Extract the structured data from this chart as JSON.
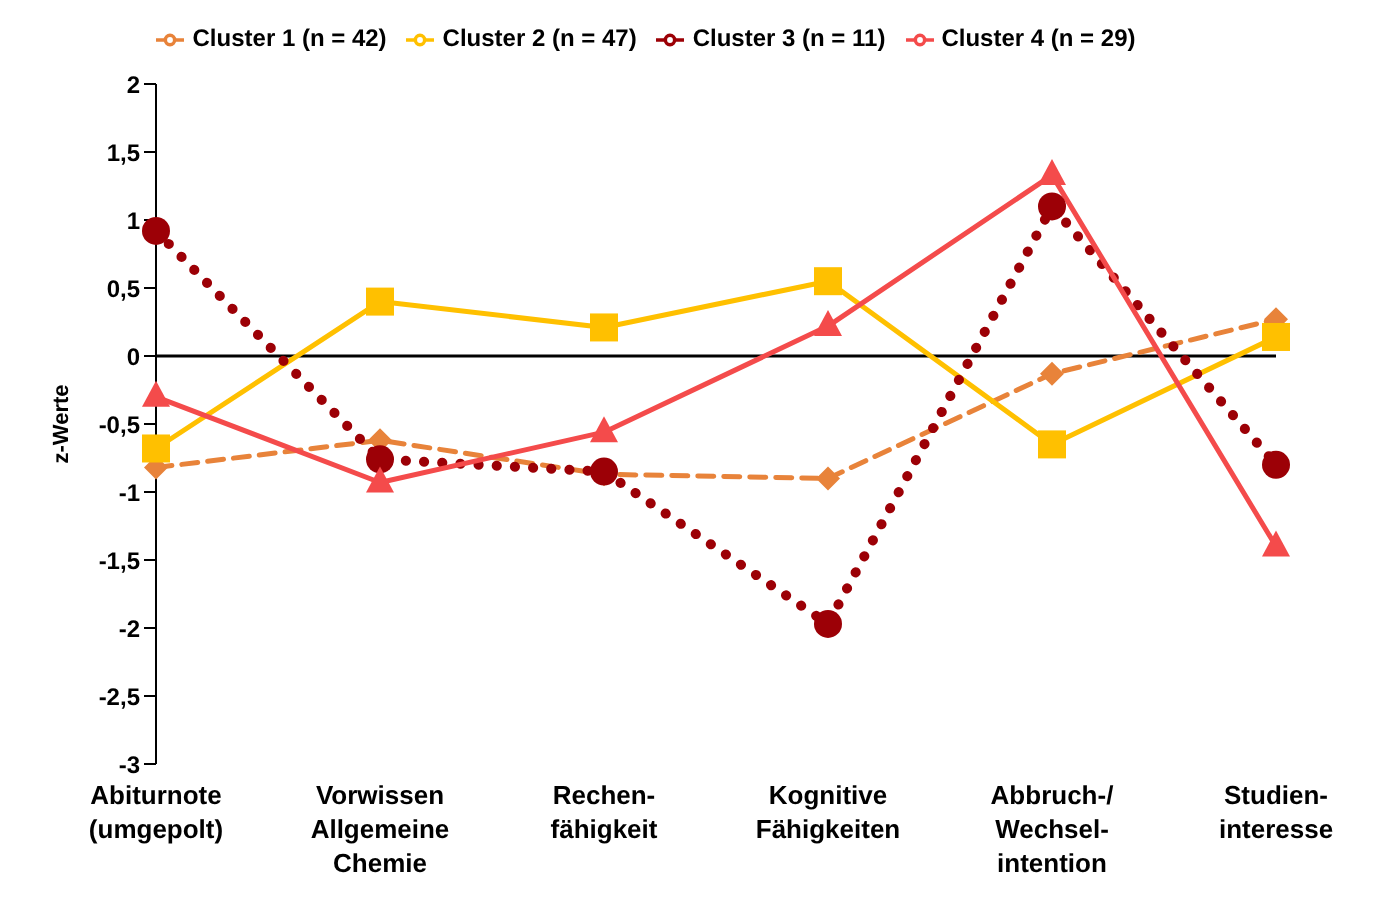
{
  "chart_data": {
    "type": "line",
    "ylabel": "z-Werte",
    "categories": [
      "Abiturnote (umgepolt)",
      "Vorwissen Allgemeine Chemie",
      "Rechen- fähigkeit",
      "Kognitive Fähigkeiten",
      "Abbruch-/ Wechsel- intention",
      "Studien- interesse"
    ],
    "series": [
      {
        "name": "Cluster 1 (n = 42)",
        "color": "#e8833a",
        "marker": "diamond",
        "line_style": "dashed",
        "values": [
          -0.82,
          -0.62,
          -0.87,
          -0.9,
          -0.13,
          0.27
        ]
      },
      {
        "name": "Cluster 2 (n = 47)",
        "color": "#ffc000",
        "marker": "square",
        "line_style": "solid",
        "values": [
          -0.68,
          0.4,
          0.21,
          0.55,
          -0.65,
          0.14
        ]
      },
      {
        "name": "Cluster 3 (n = 11)",
        "color": "#9c0006",
        "marker": "circle",
        "line_style": "dotted",
        "values": [
          0.92,
          -0.76,
          -0.85,
          -1.97,
          1.1,
          -0.8
        ]
      },
      {
        "name": "Cluster 4 (n = 29)",
        "color": "#f44b4b",
        "marker": "triangle",
        "line_style": "solid",
        "values": [
          -0.3,
          -0.93,
          -0.56,
          0.22,
          1.33,
          -1.4
        ]
      }
    ],
    "ylim": [
      -3,
      2
    ],
    "yticks": [
      {
        "value": -3,
        "label": "-3"
      },
      {
        "value": -2.5,
        "label": "-2,5"
      },
      {
        "value": -2,
        "label": "-2"
      },
      {
        "value": -1.5,
        "label": "-1,5"
      },
      {
        "value": -1,
        "label": "-1"
      },
      {
        "value": -0.5,
        "label": "-0,5"
      },
      {
        "value": 0,
        "label": "0"
      },
      {
        "value": 0.5,
        "label": "0,5"
      },
      {
        "value": 1,
        "label": "1"
      },
      {
        "value": 1.5,
        "label": "1,5"
      },
      {
        "value": 2,
        "label": "2"
      }
    ],
    "legend": "top"
  }
}
